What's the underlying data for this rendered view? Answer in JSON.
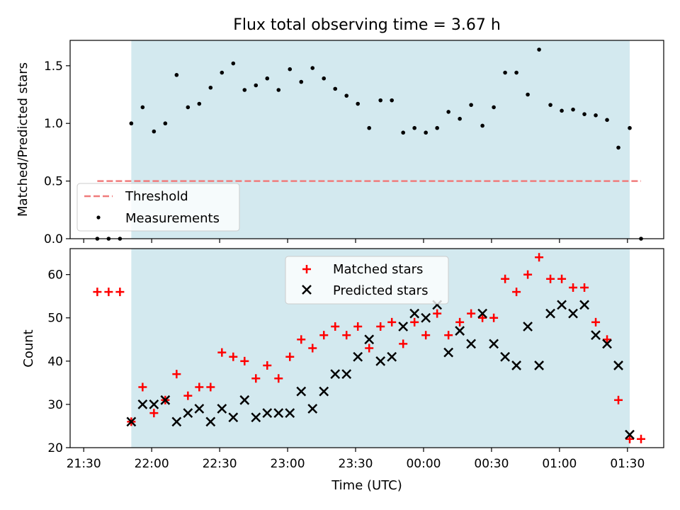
{
  "chart_data": [
    {
      "type": "scatter",
      "title": "Flux total observing time = 3.67 h",
      "xlabel": "",
      "ylabel": "Matched/Predicted stars",
      "xlim": [
        "21:24",
        "01:46"
      ],
      "ylim": [
        0,
        1.72
      ],
      "yticks": [
        "0.0",
        "0.5",
        "1.0",
        "1.5"
      ],
      "shaded_interval": [
        "21:51",
        "01:31"
      ],
      "shade_color": "#d3e9ef",
      "threshold": {
        "name": "Threshold",
        "value": 0.5,
        "from": "21:36",
        "to": "01:36",
        "color": "#f07c7c"
      },
      "legend": {
        "position": "lower-left",
        "entries": [
          "Threshold",
          "Measurements"
        ]
      },
      "series": [
        {
          "name": "Measurements",
          "color": "#000000",
          "x": [
            "21:36",
            "21:41",
            "21:46",
            "21:51",
            "21:56",
            "22:01",
            "22:06",
            "22:11",
            "22:16",
            "22:21",
            "22:26",
            "22:31",
            "22:36",
            "22:41",
            "22:46",
            "22:51",
            "22:56",
            "23:01",
            "23:06",
            "23:11",
            "23:16",
            "23:21",
            "23:26",
            "23:31",
            "23:36",
            "23:41",
            "23:46",
            "23:51",
            "23:56",
            "00:01",
            "00:06",
            "00:11",
            "00:16",
            "00:21",
            "00:26",
            "00:31",
            "00:36",
            "00:41",
            "00:46",
            "00:51",
            "00:56",
            "01:01",
            "01:06",
            "01:11",
            "01:16",
            "01:21",
            "01:26",
            "01:31",
            "01:36"
          ],
          "y": [
            0,
            0,
            0,
            1.0,
            1.14,
            0.93,
            1.0,
            1.42,
            1.14,
            1.17,
            1.31,
            1.44,
            1.52,
            1.29,
            1.33,
            1.39,
            1.29,
            1.47,
            1.36,
            1.48,
            1.39,
            1.3,
            1.24,
            1.17,
            0.96,
            1.2,
            1.2,
            0.92,
            0.96,
            0.92,
            0.96,
            1.1,
            1.04,
            1.16,
            0.98,
            1.14,
            1.44,
            1.44,
            1.25,
            1.64,
            1.16,
            1.11,
            1.12,
            1.08,
            1.07,
            1.03,
            0.79,
            0.96,
            0
          ]
        }
      ]
    },
    {
      "type": "scatter",
      "xlabel": "Time (UTC)",
      "ylabel": "Count",
      "xlim": [
        "21:24",
        "01:46"
      ],
      "ylim": [
        20,
        66
      ],
      "yticks": [
        "20",
        "30",
        "40",
        "50",
        "60"
      ],
      "xticks": [
        "21:30",
        "22:00",
        "22:30",
        "23:00",
        "23:30",
        "00:00",
        "00:30",
        "01:00",
        "01:30"
      ],
      "shaded_interval": [
        "21:51",
        "01:31"
      ],
      "legend": {
        "position": "top-center",
        "entries": [
          "Matched stars",
          "Predicted stars"
        ]
      },
      "series": [
        {
          "name": "Matched stars",
          "marker": "+",
          "color": "#ff0000",
          "x": [
            "21:36",
            "21:41",
            "21:46",
            "21:51",
            "21:56",
            "22:01",
            "22:06",
            "22:11",
            "22:16",
            "22:21",
            "22:26",
            "22:31",
            "22:36",
            "22:41",
            "22:46",
            "22:51",
            "22:56",
            "23:01",
            "23:06",
            "23:11",
            "23:16",
            "23:21",
            "23:26",
            "23:31",
            "23:36",
            "23:41",
            "23:46",
            "23:51",
            "23:56",
            "00:01",
            "00:06",
            "00:11",
            "00:16",
            "00:21",
            "00:26",
            "00:31",
            "00:36",
            "00:41",
            "00:46",
            "00:51",
            "00:56",
            "01:01",
            "01:06",
            "01:11",
            "01:16",
            "01:21",
            "01:26",
            "01:31",
            "01:36"
          ],
          "y": [
            56,
            56,
            56,
            26,
            34,
            28,
            31,
            37,
            32,
            34,
            34,
            42,
            41,
            40,
            36,
            39,
            36,
            41,
            45,
            43,
            46,
            48,
            46,
            48,
            43,
            48,
            49,
            44,
            49,
            46,
            51,
            46,
            49,
            51,
            50,
            50,
            59,
            56,
            60,
            64,
            59,
            59,
            57,
            57,
            49,
            45,
            31,
            22,
            22
          ]
        },
        {
          "name": "Predicted stars",
          "marker": "x",
          "color": "#000000",
          "x": [
            "21:51",
            "21:56",
            "22:01",
            "22:06",
            "22:11",
            "22:16",
            "22:21",
            "22:26",
            "22:31",
            "22:36",
            "22:41",
            "22:46",
            "22:51",
            "22:56",
            "23:01",
            "23:06",
            "23:11",
            "23:16",
            "23:21",
            "23:26",
            "23:31",
            "23:36",
            "23:41",
            "23:46",
            "23:51",
            "23:56",
            "00:01",
            "00:06",
            "00:11",
            "00:16",
            "00:21",
            "00:26",
            "00:31",
            "00:36",
            "00:41",
            "00:46",
            "00:51",
            "00:56",
            "01:01",
            "01:06",
            "01:11",
            "01:16",
            "01:21",
            "01:26",
            "01:31"
          ],
          "y": [
            26,
            30,
            30,
            31,
            26,
            28,
            29,
            26,
            29,
            27,
            31,
            27,
            28,
            28,
            28,
            33,
            29,
            33,
            37,
            37,
            41,
            45,
            40,
            41,
            48,
            51,
            50,
            53,
            42,
            47,
            44,
            51,
            44,
            41,
            39,
            48,
            39,
            51,
            53,
            51,
            53,
            46,
            44,
            39,
            23
          ]
        }
      ]
    }
  ]
}
